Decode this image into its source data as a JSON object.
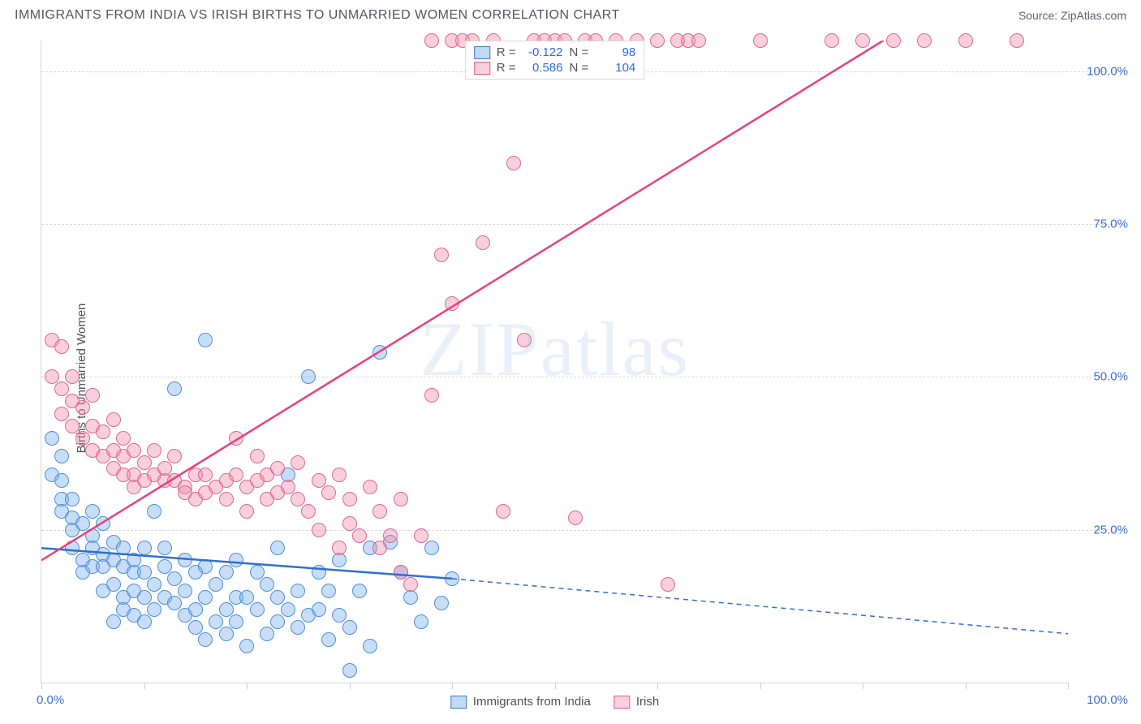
{
  "header": {
    "title": "IMMIGRANTS FROM INDIA VS IRISH BIRTHS TO UNMARRIED WOMEN CORRELATION CHART",
    "source": "Source: ZipAtlas.com"
  },
  "chart": {
    "type": "scatter",
    "ylabel": "Births to Unmarried Women",
    "watermark": "ZIPatlas",
    "background_color": "#ffffff",
    "grid_color": "#d8d8dc",
    "axis_color": "#d6d6da",
    "label_color": "#3d6fd6",
    "title_color": "#555560",
    "xlim": [
      0,
      100
    ],
    "ylim": [
      0,
      105
    ],
    "ytick_values": [
      25,
      50,
      75,
      100
    ],
    "ytick_labels": [
      "25.0%",
      "50.0%",
      "75.0%",
      "100.0%"
    ],
    "xtick_labels": {
      "left": "0.0%",
      "right": "100.0%"
    },
    "xtick_marks": [
      0,
      10,
      20,
      30,
      40,
      50,
      60,
      70,
      80,
      90,
      100
    ],
    "legend_top": [
      {
        "swatch": "blue",
        "r_label": "R =",
        "r_value": "-0.122",
        "n_label": "N =",
        "n_value": "98"
      },
      {
        "swatch": "pink",
        "r_label": "R =",
        "r_value": "0.586",
        "n_label": "N =",
        "n_value": "104"
      }
    ],
    "legend_bottom": [
      {
        "swatch": "blue",
        "label": "Immigrants from India"
      },
      {
        "swatch": "pink",
        "label": "Irish"
      }
    ],
    "series": [
      {
        "name": "india",
        "color_fill": "rgba(125,175,235,0.42)",
        "color_stroke": "#4d8fd8",
        "marker_radius": 9,
        "trend": {
          "x1": 0,
          "y1": 22,
          "x2": 40,
          "y2": 17,
          "dash_x1": 40,
          "dash_y1": 17,
          "dash_x2": 100,
          "dash_y2": 8,
          "stroke": "#2f6fd0",
          "width": 2.5
        },
        "points": [
          [
            1,
            34
          ],
          [
            1,
            40
          ],
          [
            2,
            30
          ],
          [
            2,
            37
          ],
          [
            2,
            33
          ],
          [
            2,
            28
          ],
          [
            3,
            27
          ],
          [
            3,
            25
          ],
          [
            3,
            30
          ],
          [
            3,
            22
          ],
          [
            4,
            26
          ],
          [
            4,
            20
          ],
          [
            4,
            18
          ],
          [
            5,
            24
          ],
          [
            5,
            22
          ],
          [
            5,
            19
          ],
          [
            5,
            28
          ],
          [
            6,
            21
          ],
          [
            6,
            19
          ],
          [
            6,
            15
          ],
          [
            6,
            26
          ],
          [
            7,
            20
          ],
          [
            7,
            23
          ],
          [
            7,
            10
          ],
          [
            7,
            16
          ],
          [
            8,
            19
          ],
          [
            8,
            14
          ],
          [
            8,
            22
          ],
          [
            8,
            12
          ],
          [
            9,
            11
          ],
          [
            9,
            20
          ],
          [
            9,
            15
          ],
          [
            9,
            18
          ],
          [
            10,
            14
          ],
          [
            10,
            18
          ],
          [
            10,
            22
          ],
          [
            10,
            10
          ],
          [
            11,
            12
          ],
          [
            11,
            16
          ],
          [
            11,
            28
          ],
          [
            12,
            14
          ],
          [
            12,
            22
          ],
          [
            12,
            19
          ],
          [
            13,
            13
          ],
          [
            13,
            17
          ],
          [
            13,
            48
          ],
          [
            14,
            20
          ],
          [
            14,
            15
          ],
          [
            14,
            11
          ],
          [
            15,
            18
          ],
          [
            15,
            9
          ],
          [
            15,
            12
          ],
          [
            16,
            19
          ],
          [
            16,
            14
          ],
          [
            16,
            7
          ],
          [
            16,
            56
          ],
          [
            17,
            10
          ],
          [
            17,
            16
          ],
          [
            18,
            12
          ],
          [
            18,
            18
          ],
          [
            18,
            8
          ],
          [
            19,
            14
          ],
          [
            19,
            20
          ],
          [
            19,
            10
          ],
          [
            20,
            6
          ],
          [
            20,
            14
          ],
          [
            21,
            18
          ],
          [
            21,
            12
          ],
          [
            22,
            8
          ],
          [
            22,
            16
          ],
          [
            23,
            14
          ],
          [
            23,
            22
          ],
          [
            23,
            10
          ],
          [
            24,
            12
          ],
          [
            24,
            34
          ],
          [
            25,
            9
          ],
          [
            25,
            15
          ],
          [
            26,
            11
          ],
          [
            26,
            50
          ],
          [
            27,
            18
          ],
          [
            27,
            12
          ],
          [
            28,
            7
          ],
          [
            28,
            15
          ],
          [
            29,
            11
          ],
          [
            29,
            20
          ],
          [
            30,
            9
          ],
          [
            30,
            2
          ],
          [
            31,
            15
          ],
          [
            32,
            6
          ],
          [
            32,
            22
          ],
          [
            33,
            54
          ],
          [
            34,
            23
          ],
          [
            35,
            18
          ],
          [
            36,
            14
          ],
          [
            37,
            10
          ],
          [
            38,
            22
          ],
          [
            39,
            13
          ],
          [
            40,
            17
          ]
        ]
      },
      {
        "name": "irish",
        "color_fill": "rgba(240,135,165,0.40)",
        "color_stroke": "#e06692",
        "marker_radius": 9,
        "trend": {
          "x1": 0,
          "y1": 20,
          "x2": 82,
          "y2": 105,
          "stroke": "#e8417a",
          "width": 2.5
        },
        "points": [
          [
            1,
            56
          ],
          [
            1,
            50
          ],
          [
            2,
            55
          ],
          [
            2,
            48
          ],
          [
            2,
            44
          ],
          [
            3,
            50
          ],
          [
            3,
            42
          ],
          [
            3,
            46
          ],
          [
            4,
            45
          ],
          [
            4,
            40
          ],
          [
            5,
            42
          ],
          [
            5,
            38
          ],
          [
            5,
            47
          ],
          [
            6,
            41
          ],
          [
            6,
            37
          ],
          [
            7,
            38
          ],
          [
            7,
            35
          ],
          [
            7,
            43
          ],
          [
            8,
            37
          ],
          [
            8,
            34
          ],
          [
            8,
            40
          ],
          [
            9,
            34
          ],
          [
            9,
            38
          ],
          [
            9,
            32
          ],
          [
            10,
            36
          ],
          [
            10,
            33
          ],
          [
            11,
            34
          ],
          [
            11,
            38
          ],
          [
            12,
            33
          ],
          [
            12,
            35
          ],
          [
            13,
            33
          ],
          [
            13,
            37
          ],
          [
            14,
            32
          ],
          [
            14,
            31
          ],
          [
            15,
            34
          ],
          [
            15,
            30
          ],
          [
            16,
            34
          ],
          [
            16,
            31
          ],
          [
            17,
            32
          ],
          [
            18,
            33
          ],
          [
            18,
            30
          ],
          [
            19,
            34
          ],
          [
            19,
            40
          ],
          [
            20,
            32
          ],
          [
            20,
            28
          ],
          [
            21,
            33
          ],
          [
            21,
            37
          ],
          [
            22,
            30
          ],
          [
            22,
            34
          ],
          [
            23,
            31
          ],
          [
            23,
            35
          ],
          [
            24,
            32
          ],
          [
            25,
            30
          ],
          [
            25,
            36
          ],
          [
            26,
            28
          ],
          [
            27,
            33
          ],
          [
            27,
            25
          ],
          [
            28,
            31
          ],
          [
            29,
            22
          ],
          [
            29,
            34
          ],
          [
            30,
            26
          ],
          [
            30,
            30
          ],
          [
            31,
            24
          ],
          [
            32,
            32
          ],
          [
            33,
            22
          ],
          [
            33,
            28
          ],
          [
            34,
            24
          ],
          [
            35,
            18
          ],
          [
            35,
            30
          ],
          [
            36,
            16
          ],
          [
            37,
            24
          ],
          [
            38,
            47
          ],
          [
            38,
            105
          ],
          [
            39,
            70
          ],
          [
            40,
            62
          ],
          [
            40,
            105
          ],
          [
            41,
            105
          ],
          [
            42,
            105
          ],
          [
            43,
            72
          ],
          [
            44,
            105
          ],
          [
            45,
            28
          ],
          [
            46,
            85
          ],
          [
            47,
            56
          ],
          [
            48,
            105
          ],
          [
            49,
            105
          ],
          [
            50,
            105
          ],
          [
            51,
            105
          ],
          [
            52,
            27
          ],
          [
            53,
            105
          ],
          [
            54,
            105
          ],
          [
            56,
            105
          ],
          [
            58,
            105
          ],
          [
            60,
            105
          ],
          [
            61,
            16
          ],
          [
            62,
            105
          ],
          [
            63,
            105
          ],
          [
            64,
            105
          ],
          [
            70,
            105
          ],
          [
            77,
            105
          ],
          [
            80,
            105
          ],
          [
            83,
            105
          ],
          [
            86,
            105
          ],
          [
            90,
            105
          ],
          [
            95,
            105
          ]
        ]
      }
    ]
  }
}
